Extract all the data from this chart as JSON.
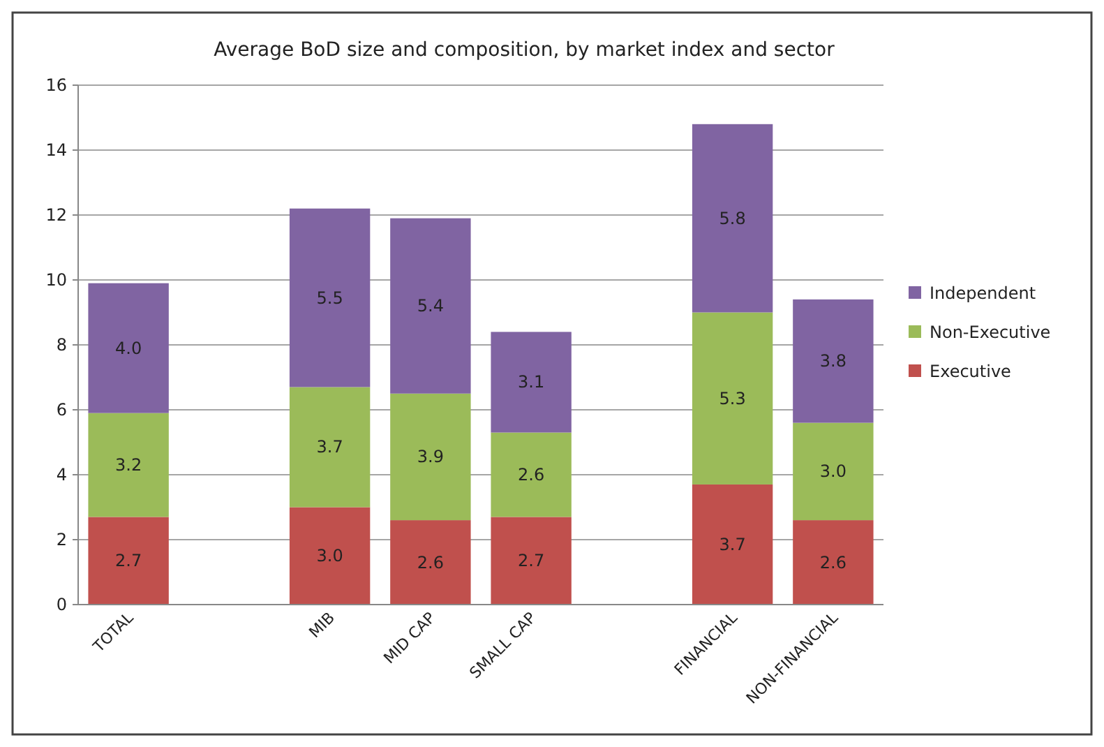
{
  "chart_data": {
    "type": "bar",
    "title": "Average BoD size and composition, by market index and sector",
    "stacked": true,
    "categories": [
      "TOTAL",
      null,
      "MIB",
      "MID CAP",
      "SMALL CAP",
      null,
      "FINANCIAL",
      "NON-FINANCIAL"
    ],
    "series": [
      {
        "name": "Executive",
        "color": "#c0504d",
        "values": [
          2.7,
          null,
          3.0,
          2.6,
          2.7,
          null,
          3.7,
          2.6
        ],
        "value_labels": [
          "2.7",
          null,
          "3.0",
          "2.6",
          "2.7",
          null,
          "3.7",
          "2.6"
        ]
      },
      {
        "name": "Non-Executive",
        "color": "#9bbb59",
        "values": [
          3.2,
          null,
          3.7,
          3.9,
          2.6,
          null,
          5.3,
          3.0
        ],
        "value_labels": [
          "3.2",
          null,
          "3.7",
          "3.9",
          "2.6",
          null,
          "5.3",
          "3.0"
        ]
      },
      {
        "name": "Independent",
        "color": "#8064a2",
        "values": [
          4.0,
          null,
          5.5,
          5.4,
          3.1,
          null,
          5.8,
          3.8
        ],
        "value_labels": [
          "4.0",
          null,
          "5.5",
          "5.4",
          "3.1",
          null,
          "5.8",
          "3.8"
        ]
      }
    ],
    "ylim": [
      0,
      16
    ],
    "yticks": [
      0,
      2,
      4,
      6,
      8,
      10,
      12,
      14,
      16
    ],
    "grid": "y",
    "legend": "right"
  }
}
